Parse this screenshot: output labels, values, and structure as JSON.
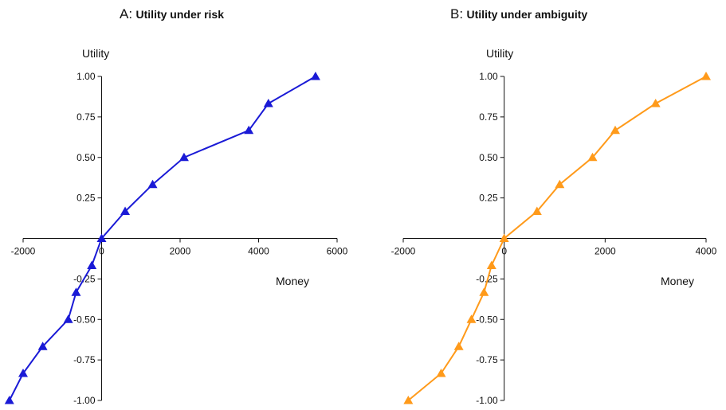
{
  "chart_data": [
    {
      "type": "line",
      "panel_letter": "A:",
      "title": "Utility under risk",
      "xlabel": "Money",
      "ylabel": "Utility",
      "xlim": [
        -2000,
        6000
      ],
      "ylim": [
        -1.0,
        1.0
      ],
      "x_ticks": [
        "-2000",
        "0",
        "2000",
        "4000",
        "6000"
      ],
      "y_ticks": [
        "-1.00",
        "-0.75",
        "-0.50",
        "-0.25",
        "0.25",
        "0.50",
        "0.75",
        "1.00"
      ],
      "marker": "triangle",
      "color": "#1a1ad6",
      "series": [
        {
          "x": [
            -2350,
            -2000,
            -1500,
            -850,
            -650,
            -250,
            0,
            600,
            1300,
            2100,
            3750,
            4250,
            5450
          ],
          "y": [
            -1.0,
            -0.833,
            -0.667,
            -0.5,
            -0.333,
            -0.167,
            0.0,
            0.167,
            0.333,
            0.5,
            0.667,
            0.833,
            1.0
          ]
        }
      ]
    },
    {
      "type": "line",
      "panel_letter": "B:",
      "title": "Utility under ambiguity",
      "xlabel": "Money",
      "ylabel": "Utility",
      "xlim": [
        -2000,
        4000
      ],
      "ylim": [
        -1.0,
        1.0
      ],
      "x_ticks": [
        "-2000",
        "0",
        "2000",
        "4000"
      ],
      "y_ticks": [
        "-1.00",
        "-0.75",
        "-0.50",
        "-0.25",
        "0.25",
        "0.50",
        "0.75",
        "1.00"
      ],
      "marker": "triangle",
      "color": "#ff9a1a",
      "series": [
        {
          "x": [
            -1900,
            -1250,
            -900,
            -650,
            -400,
            -250,
            0,
            650,
            1100,
            1750,
            2200,
            3000,
            4000
          ],
          "y": [
            -1.0,
            -0.833,
            -0.667,
            -0.5,
            -0.333,
            -0.167,
            0.0,
            0.167,
            0.333,
            0.5,
            0.667,
            0.833,
            1.0
          ]
        }
      ]
    }
  ]
}
